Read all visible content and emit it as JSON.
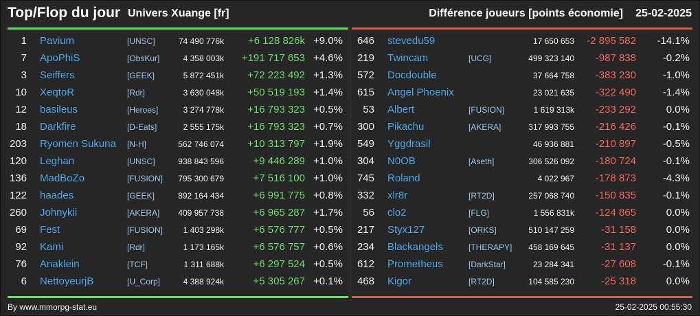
{
  "header": {
    "title": "Top/Flop du jour",
    "universe": "Univers Xuange [fr]",
    "diff_label": "Différence joueurs [points économie]",
    "date": "25-02-2025"
  },
  "top": [
    {
      "rank": "1",
      "name": "Pavium",
      "alliance": "[UNSC]",
      "points": "74 490 776k",
      "diff": "+6 128 826k",
      "pct": "+9.0%"
    },
    {
      "rank": "7",
      "name": "ApoPhiS",
      "alliance": "[ObsKur]",
      "points": "4 358 003k",
      "diff": "+191 717 653",
      "pct": "+4.6%"
    },
    {
      "rank": "3",
      "name": "Seiffers",
      "alliance": "[GEEK]",
      "points": "5 872 451k",
      "diff": "+72 223 492",
      "pct": "+1.3%"
    },
    {
      "rank": "10",
      "name": "XeqtoR",
      "alliance": "[Rdr]",
      "points": "3 630 048k",
      "diff": "+50 519 193",
      "pct": "+1.4%"
    },
    {
      "rank": "12",
      "name": "basileus",
      "alliance": "[Heroes]",
      "points": "3 274 778k",
      "diff": "+16 793 323",
      "pct": "+0.5%"
    },
    {
      "rank": "18",
      "name": "Darkfire",
      "alliance": "[D-Eats]",
      "points": "2 555 175k",
      "diff": "+16 793 323",
      "pct": "+0.7%"
    },
    {
      "rank": "203",
      "name": "Ryomen Sukuna",
      "alliance": "[N-H]",
      "points": "562 746 074",
      "diff": "+10 313 797",
      "pct": "+1.9%"
    },
    {
      "rank": "120",
      "name": "Leghan",
      "alliance": "[UNSC]",
      "points": "938 843 596",
      "diff": "+9 446 289",
      "pct": "+1.0%"
    },
    {
      "rank": "136",
      "name": "MadBoZo",
      "alliance": "[FUSION]",
      "points": "795 300 679",
      "diff": "+7 516 100",
      "pct": "+1.0%"
    },
    {
      "rank": "122",
      "name": "haades",
      "alliance": "[GEEK]",
      "points": "892 164 434",
      "diff": "+6 991 775",
      "pct": "+0.8%"
    },
    {
      "rank": "260",
      "name": "Johnykii",
      "alliance": "[AKERA]",
      "points": "409 957 738",
      "diff": "+6 965 287",
      "pct": "+1.7%"
    },
    {
      "rank": "69",
      "name": "Fest",
      "alliance": "[FUSION]",
      "points": "1 403 298k",
      "diff": "+6 576 777",
      "pct": "+0.5%"
    },
    {
      "rank": "92",
      "name": "Kami",
      "alliance": "[Rdr]",
      "points": "1 173 165k",
      "diff": "+6 576 757",
      "pct": "+0.6%"
    },
    {
      "rank": "76",
      "name": "Anaklein",
      "alliance": "[TCF]",
      "points": "1 311 688k",
      "diff": "+6 297 524",
      "pct": "+0.5%"
    },
    {
      "rank": "6",
      "name": "NettoyeurjB",
      "alliance": "[U_Corp]",
      "points": "4 388 924k",
      "diff": "+5 305 267",
      "pct": "+0.1%"
    }
  ],
  "flop": [
    {
      "rank": "646",
      "name": "stevedu59",
      "alliance": "",
      "points": "17 650 653",
      "diff": "-2 895 582",
      "pct": "-14.1%"
    },
    {
      "rank": "219",
      "name": "Twincam",
      "alliance": "[UCG]",
      "points": "499 323 140",
      "diff": "-987 838",
      "pct": "-0.2%"
    },
    {
      "rank": "572",
      "name": "Docdouble",
      "alliance": "",
      "points": "37 664 758",
      "diff": "-383 230",
      "pct": "-1.0%"
    },
    {
      "rank": "615",
      "name": "Angel Phoenix",
      "alliance": "",
      "points": "23 021 635",
      "diff": "-322 490",
      "pct": "-1.4%"
    },
    {
      "rank": "53",
      "name": "Albert",
      "alliance": "[FUSION]",
      "points": "1 619 313k",
      "diff": "-233 292",
      "pct": "0.0%"
    },
    {
      "rank": "300",
      "name": "Pikachu",
      "alliance": "[AKERA]",
      "points": "317 993 755",
      "diff": "-216 426",
      "pct": "-0.1%"
    },
    {
      "rank": "549",
      "name": "Yggdrasil",
      "alliance": "",
      "points": "46 936 881",
      "diff": "-210 897",
      "pct": "-0.5%"
    },
    {
      "rank": "304",
      "name": "N0OB",
      "alliance": "[Aseth]",
      "points": "306 526 092",
      "diff": "-180 724",
      "pct": "-0.1%"
    },
    {
      "rank": "745",
      "name": "Roland",
      "alliance": "",
      "points": "4 022 967",
      "diff": "-178 873",
      "pct": "-4.3%"
    },
    {
      "rank": "332",
      "name": "xlr8r",
      "alliance": "[RT2D]",
      "points": "257 068 740",
      "diff": "-150 835",
      "pct": "-0.1%"
    },
    {
      "rank": "56",
      "name": "clo2",
      "alliance": "[FLG]",
      "points": "1 556 831k",
      "diff": "-124 865",
      "pct": "0.0%"
    },
    {
      "rank": "217",
      "name": "Styx127",
      "alliance": "[ORKS]",
      "points": "510 147 259",
      "diff": "-31 158",
      "pct": "0.0%"
    },
    {
      "rank": "234",
      "name": "Blackangels",
      "alliance": "[THERAPY]",
      "points": "458 169 645",
      "diff": "-31 137",
      "pct": "0.0%"
    },
    {
      "rank": "612",
      "name": "Prometheus",
      "alliance": "[DarkStar]",
      "points": "23 284 341",
      "diff": "-27 608",
      "pct": "-0.1%"
    },
    {
      "rank": "468",
      "name": "Kigor",
      "alliance": "[RT2D]",
      "points": "104 585 230",
      "diff": "-25 318",
      "pct": "0.0%"
    }
  ],
  "footer": {
    "source": "By www.mmorpg-stat.eu",
    "timestamp": "25-02-2025 00:55:30"
  },
  "colors": {
    "background": "#262626",
    "top_accent": "#5ce65c",
    "flop_accent": "#e05a4e",
    "gain": "#6bde6b",
    "loss": "#ef6a5e",
    "player_name": "#4aa8e8",
    "alliance": "#9ec4e8"
  }
}
